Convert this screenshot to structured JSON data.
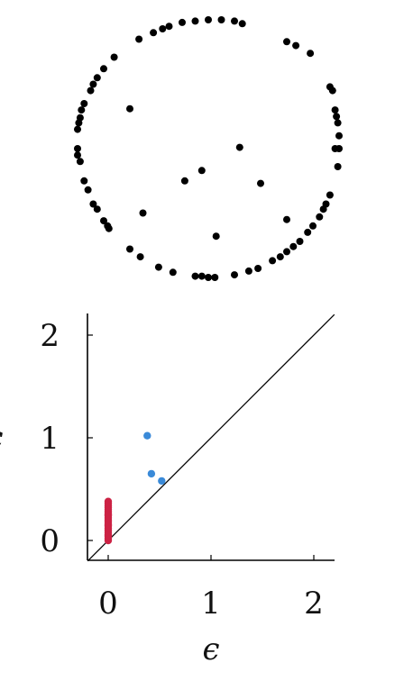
{
  "chart_data": [
    {
      "type": "scatter",
      "series": [
        {
          "color": "#000000",
          "points": [
            [
              0.0,
              1.0
            ],
            [
              0.1,
              1.0
            ],
            [
              0.2,
              0.99
            ],
            [
              -0.1,
              0.99
            ],
            [
              -0.2,
              0.98
            ],
            [
              -0.3,
              0.95
            ],
            [
              -0.35,
              0.93
            ],
            [
              -0.42,
              0.9
            ],
            [
              -0.53,
              0.85
            ],
            [
              0.26,
              0.97
            ],
            [
              0.6,
              0.83
            ],
            [
              0.67,
              0.8
            ],
            [
              0.78,
              0.74
            ],
            [
              -0.72,
              0.71
            ],
            [
              -0.8,
              0.62
            ],
            [
              -0.85,
              0.55
            ],
            [
              -0.88,
              0.5
            ],
            [
              -0.9,
              0.45
            ],
            [
              -0.95,
              0.35
            ],
            [
              -0.97,
              0.3
            ],
            [
              -0.98,
              0.24
            ],
            [
              -0.99,
              0.2
            ],
            [
              -1.0,
              0.15
            ],
            [
              -1.0,
              0.0
            ],
            [
              -1.0,
              -0.05
            ],
            [
              -0.98,
              -0.1
            ],
            [
              -0.95,
              -0.25
            ],
            [
              -0.92,
              -0.32
            ],
            [
              -0.88,
              -0.43
            ],
            [
              -0.85,
              -0.47
            ],
            [
              -0.8,
              -0.56
            ],
            [
              -0.77,
              -0.6
            ],
            [
              -0.76,
              -0.62
            ],
            [
              -0.6,
              -0.78
            ],
            [
              -0.52,
              -0.84
            ],
            [
              -0.38,
              -0.92
            ],
            [
              -0.27,
              -0.96
            ],
            [
              -0.1,
              -0.99
            ],
            [
              -0.05,
              -0.99
            ],
            [
              0.0,
              -1.0
            ],
            [
              0.05,
              -1.0
            ],
            [
              0.2,
              -0.98
            ],
            [
              0.31,
              -0.95
            ],
            [
              0.38,
              -0.93
            ],
            [
              0.49,
              -0.87
            ],
            [
              0.55,
              -0.84
            ],
            [
              0.6,
              -0.8
            ],
            [
              0.65,
              -0.76
            ],
            [
              0.7,
              -0.72
            ],
            [
              0.76,
              -0.65
            ],
            [
              0.8,
              -0.6
            ],
            [
              0.85,
              -0.53
            ],
            [
              0.88,
              -0.47
            ],
            [
              0.9,
              -0.43
            ],
            [
              0.93,
              -0.36
            ],
            [
              0.95,
              0.45
            ],
            [
              0.93,
              0.48
            ],
            [
              0.97,
              0.3
            ],
            [
              0.98,
              0.25
            ],
            [
              0.99,
              0.2
            ],
            [
              1.0,
              0.1
            ],
            [
              1.0,
              0.0
            ],
            [
              0.97,
              0.0
            ],
            [
              0.99,
              -0.14
            ],
            [
              -0.6,
              0.31
            ],
            [
              0.24,
              0.01
            ],
            [
              -0.05,
              -0.17
            ],
            [
              -0.18,
              -0.25
            ],
            [
              0.4,
              -0.27
            ],
            [
              -0.5,
              -0.5
            ],
            [
              0.06,
              -0.68
            ],
            [
              0.6,
              -0.55
            ]
          ]
        }
      ]
    },
    {
      "type": "scatter",
      "xlabel": "ϵ",
      "ylabel": "ϵ",
      "xlim": [
        -0.2,
        2.2
      ],
      "ylim": [
        -0.2,
        2.2
      ],
      "xticks": [
        "0",
        "1",
        "2"
      ],
      "yticks": [
        "0",
        "1",
        "2"
      ],
      "tick_values": [
        0,
        1,
        2
      ],
      "diagonal": true,
      "series": [
        {
          "color": "#cc2244",
          "points": [
            [
              0,
              0.0
            ],
            [
              0,
              0.02
            ],
            [
              0,
              0.04
            ],
            [
              0,
              0.06
            ],
            [
              0,
              0.08
            ],
            [
              0,
              0.1
            ],
            [
              0,
              0.12
            ],
            [
              0,
              0.14
            ],
            [
              0,
              0.16
            ],
            [
              0,
              0.18
            ],
            [
              0,
              0.2
            ],
            [
              0,
              0.22
            ],
            [
              0,
              0.24
            ],
            [
              0,
              0.26
            ],
            [
              0,
              0.28
            ],
            [
              0,
              0.3
            ],
            [
              0,
              0.32
            ],
            [
              0,
              0.34
            ],
            [
              0,
              0.36
            ],
            [
              0,
              0.38
            ],
            [
              0,
              0.05
            ],
            [
              0,
              0.15
            ],
            [
              0,
              0.25
            ]
          ]
        },
        {
          "color": "#3a8ad8",
          "points": [
            [
              0.38,
              1.02
            ],
            [
              0.42,
              0.65
            ],
            [
              0.52,
              0.58
            ]
          ]
        }
      ]
    }
  ]
}
